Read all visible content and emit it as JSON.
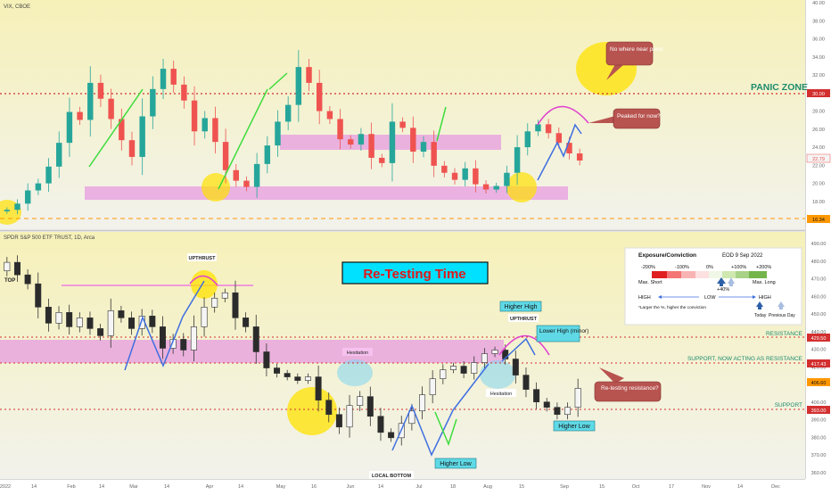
{
  "vix_panel": {
    "title": "VIX, CBOE",
    "y_ticks": [
      "40.00",
      "38.00",
      "36.00",
      "34.00",
      "32.00",
      "30.00",
      "28.00",
      "26.00",
      "24.00",
      "22.00",
      "20.00",
      "18.00",
      "16.00"
    ],
    "zone_label": "PANIC ZONE",
    "price_tags": {
      "panic": "30.00",
      "current": "22.79",
      "low": "16.34"
    },
    "callouts": {
      "panic": "No where near panic",
      "peak": "Peaked for now?"
    },
    "colors": {
      "up": "#26a69a",
      "down": "#ef5350",
      "panic_line": "#d32f2f",
      "zone": "#e79be0",
      "halo": "#ffe100"
    }
  },
  "spy_panel": {
    "title": "SPDR S&P 500 ETF TRUST, 1D, Arca",
    "headline": "Re-Testing Time",
    "y_ticks": [
      "490.00",
      "480.00",
      "470.00",
      "460.00",
      "450.00",
      "440.00",
      "430.00",
      "420.00",
      "410.00",
      "400.00",
      "390.00",
      "380.00",
      "370.00",
      "360.00"
    ],
    "labels": {
      "top": "TOP",
      "upthrust_1": "UPTHRUST",
      "upthrust_2": "UPTHRUST",
      "hesitation_1": "Hesitation",
      "hesitation_2": "Hesitation",
      "local_bottom": "LOCAL BOTTOM",
      "higher_low_1": "Higher Low",
      "higher_high": "Higher High",
      "lower_high": "Lower High (minor)",
      "higher_low_2": "Higher Low",
      "resistance": "RESISTANCE",
      "support_resistance": "SUPPORT, NOW ACTING AS RESISTANCE",
      "support": "SUPPORT",
      "retest_callout": "Re-testing resistance?"
    },
    "price_tags": {
      "resistance": "429.50",
      "support_res": "417.43",
      "current": "406.60",
      "support": "393.00"
    },
    "colors": {
      "up": "#f5f5f5",
      "down": "#2b2b2b",
      "wick": "#333333",
      "line": "#d32f2f",
      "zone": "#e79be0",
      "halo": "#ffe100"
    }
  },
  "conviction_box": {
    "title": "Exposure/Conviction",
    "date": "EOD 9 Sep 2022",
    "scale": [
      "-200%",
      "-100%",
      "0%",
      "+100%",
      "+200%"
    ],
    "max_short": "Max. Short",
    "max_long": "Max. Long",
    "marker_value": "+40%",
    "high_left": "HIGH",
    "low_mid": "LOW",
    "high_right": "HIGH",
    "footnote": "*Larger the %, higher the conviction",
    "today": "Today",
    "previous": "Previous Day"
  },
  "x_axis": {
    "ticks": [
      "2022",
      "14",
      "Feb",
      "14",
      "Mar",
      "14",
      "Apr",
      "14",
      "May",
      "16",
      "Jun",
      "14",
      "Jul",
      "18",
      "Aug",
      "15",
      "Sep",
      "15",
      "Oct",
      "17",
      "Nov",
      "14",
      "Dec"
    ]
  },
  "chart_data": [
    {
      "type": "candlestick",
      "title": "VIX, CBOE",
      "ylim": [
        15,
        41
      ],
      "horizontal_lines": [
        {
          "label": "PANIC ZONE",
          "y": 30.0
        }
      ],
      "support_zone": [
        18.8,
        19.8
      ],
      "mid_zone": [
        23.9,
        25.4
      ],
      "close_series": [
        17.2,
        17.9,
        19.4,
        20.2,
        22.1,
        24.8,
        28.3,
        27.4,
        31.6,
        29.8,
        27.5,
        25.1,
        23.2,
        27.8,
        30.9,
        33.2,
        31.4,
        29.6,
        26.1,
        27.6,
        24.9,
        21.7,
        20.5,
        19.8,
        22.4,
        24.5,
        27.2,
        29.1,
        33.4,
        31.6,
        28.4,
        27.5,
        25.2,
        24.6,
        25.8,
        23.1,
        22.5,
        27.2,
        26.5,
        23.8,
        24.9,
        22.2,
        21.4,
        20.6,
        21.9,
        20.1,
        19.5,
        19.9,
        21.4,
        24.3,
        26.1,
        26.9,
        25.9,
        24.8,
        23.6,
        22.79
      ]
    },
    {
      "type": "candlestick",
      "title": "SPDR S&P 500 ETF TRUST, 1D, Arca",
      "ylim": [
        356,
        494
      ],
      "levels": {
        "resistance": 429.5,
        "support_now_resistance": 417.43,
        "support": 393.0
      },
      "close_series": [
        477,
        470,
        465,
        452,
        443,
        449,
        441,
        446,
        440,
        436,
        450,
        446,
        440,
        447,
        441,
        429,
        434,
        428,
        441,
        452,
        457,
        460,
        446,
        441,
        427,
        418,
        415,
        413,
        411,
        413,
        400,
        392,
        385,
        397,
        402,
        391,
        382,
        379,
        387,
        394,
        403,
        412,
        417,
        419,
        415,
        421,
        426,
        428,
        423,
        414,
        406,
        399,
        396,
        392,
        396,
        406.6
      ]
    }
  ]
}
